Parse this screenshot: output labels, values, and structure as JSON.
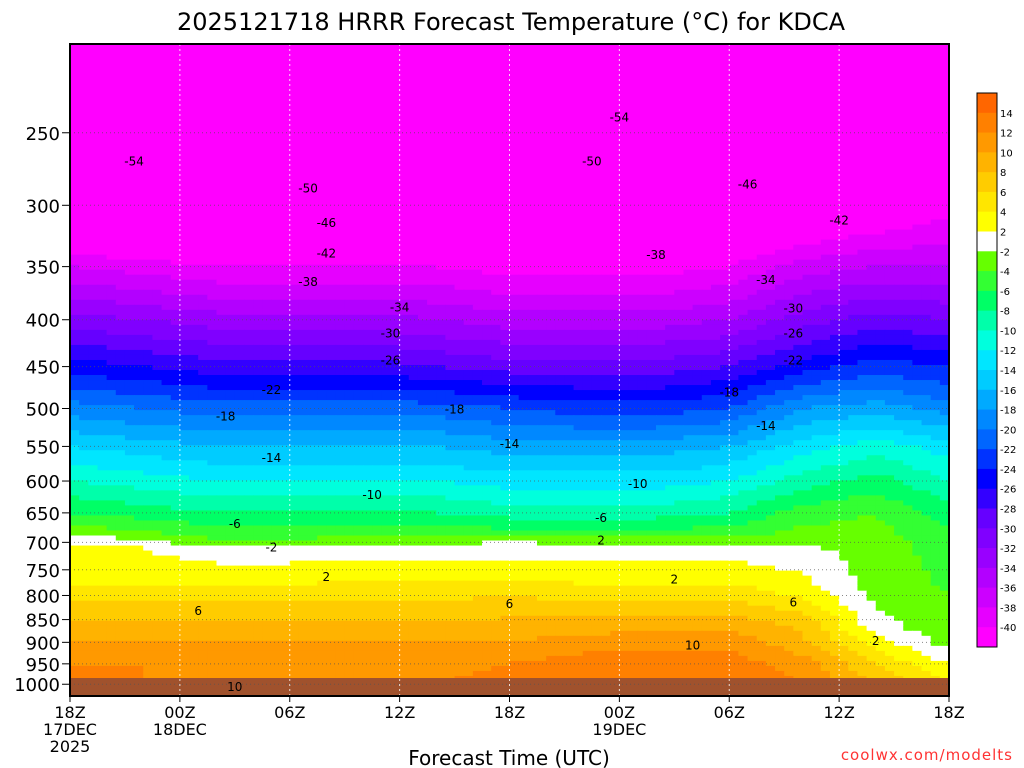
{
  "chart_data": {
    "type": "heatmap",
    "title": "2025121718 HRRR Forecast Temperature (°C) for KDCA",
    "xlabel": "Forecast Time (UTC)",
    "ylabel": "",
    "credit": "coolwx.com/modelts",
    "x_ticks": [
      {
        "hour": 0,
        "lines": [
          "18Z",
          "17DEC",
          "2025"
        ]
      },
      {
        "hour": 6,
        "lines": [
          "00Z",
          "18DEC"
        ]
      },
      {
        "hour": 12,
        "lines": [
          "06Z"
        ]
      },
      {
        "hour": 18,
        "lines": [
          "12Z"
        ]
      },
      {
        "hour": 24,
        "lines": [
          "18Z"
        ]
      },
      {
        "hour": 30,
        "lines": [
          "00Z",
          "19DEC"
        ]
      },
      {
        "hour": 36,
        "lines": [
          "06Z"
        ]
      },
      {
        "hour": 42,
        "lines": [
          "12Z"
        ]
      },
      {
        "hour": 48,
        "lines": [
          "18Z"
        ]
      }
    ],
    "xlim": [
      0,
      48
    ],
    "y_ticks": [
      250,
      300,
      350,
      400,
      450,
      500,
      550,
      600,
      650,
      700,
      750,
      800,
      850,
      900,
      950,
      1000
    ],
    "ylim_hpa": [
      200,
      1030
    ],
    "y_scale": "log",
    "levels": [
      {
        "T": -40,
        "color": "#ff00ff"
      },
      {
        "T": -38,
        "color": "#e600ff"
      },
      {
        "T": -36,
        "color": "#cc00ff"
      },
      {
        "T": -34,
        "color": "#b300ff"
      },
      {
        "T": -32,
        "color": "#9900ff"
      },
      {
        "T": -30,
        "color": "#8000ff"
      },
      {
        "T": -28,
        "color": "#6600ff"
      },
      {
        "T": -26,
        "color": "#3300ff"
      },
      {
        "T": -24,
        "color": "#0000ff"
      },
      {
        "T": -22,
        "color": "#0033ff"
      },
      {
        "T": -20,
        "color": "#0066ff"
      },
      {
        "T": -18,
        "color": "#0088ff"
      },
      {
        "T": -16,
        "color": "#00aaff"
      },
      {
        "T": -14,
        "color": "#00ccff"
      },
      {
        "T": -12,
        "color": "#00e6ff"
      },
      {
        "T": -10,
        "color": "#00ffdd"
      },
      {
        "T": -8,
        "color": "#00ffaa"
      },
      {
        "T": -6,
        "color": "#00ff66"
      },
      {
        "T": -4,
        "color": "#33ff33"
      },
      {
        "T": -2,
        "color": "#66ff00"
      },
      {
        "T": 0,
        "color": "#ffffff"
      },
      {
        "T": 2,
        "color": "#ffff00"
      },
      {
        "T": 4,
        "color": "#ffe600"
      },
      {
        "T": 6,
        "color": "#ffcc00"
      },
      {
        "T": 8,
        "color": "#ffb300"
      },
      {
        "T": 10,
        "color": "#ff9900"
      },
      {
        "T": 12,
        "color": "#ff8000"
      },
      {
        "T": 14,
        "color": "#ff6600"
      }
    ],
    "colorbar_labels": [
      "14",
      "12",
      "10",
      "8",
      "6",
      "4",
      "2",
      "-2",
      "-4",
      "-6",
      "-8",
      "-10",
      "-12",
      "-14",
      "-16",
      "-18",
      "-20",
      "-22",
      "-24",
      "-26",
      "-28",
      "-30",
      "-32",
      "-34",
      "-36",
      "-38",
      "-40"
    ],
    "contour_labels": [
      {
        "v": "-54",
        "h": 3.5,
        "p": 268
      },
      {
        "v": "-54",
        "h": 30.0,
        "p": 240
      },
      {
        "v": "-50",
        "h": 13.0,
        "p": 287
      },
      {
        "v": "-50",
        "h": 28.5,
        "p": 268
      },
      {
        "v": "-46",
        "h": 14.0,
        "p": 313
      },
      {
        "v": "-46",
        "h": 37.0,
        "p": 284
      },
      {
        "v": "-42",
        "h": 14.0,
        "p": 338
      },
      {
        "v": "-42",
        "h": 42.0,
        "p": 311
      },
      {
        "v": "-38",
        "h": 13.0,
        "p": 363
      },
      {
        "v": "-38",
        "h": 32.0,
        "p": 339
      },
      {
        "v": "-34",
        "h": 18.0,
        "p": 387
      },
      {
        "v": "-34",
        "h": 38.0,
        "p": 361
      },
      {
        "v": "-30",
        "h": 17.5,
        "p": 413
      },
      {
        "v": "-30",
        "h": 39.5,
        "p": 388
      },
      {
        "v": "-26",
        "h": 17.5,
        "p": 442
      },
      {
        "v": "-26",
        "h": 39.5,
        "p": 413
      },
      {
        "v": "-22",
        "h": 11.0,
        "p": 476
      },
      {
        "v": "-22",
        "h": 39.5,
        "p": 442
      },
      {
        "v": "-18",
        "h": 8.5,
        "p": 509
      },
      {
        "v": "-18",
        "h": 21.0,
        "p": 500
      },
      {
        "v": "-18",
        "h": 36.0,
        "p": 479
      },
      {
        "v": "-14",
        "h": 11.0,
        "p": 565
      },
      {
        "v": "-14",
        "h": 24.0,
        "p": 545
      },
      {
        "v": "-14",
        "h": 38.0,
        "p": 521
      },
      {
        "v": "-10",
        "h": 16.5,
        "p": 620
      },
      {
        "v": "-10",
        "h": 31.0,
        "p": 603
      },
      {
        "v": "-6",
        "h": 9.0,
        "p": 667
      },
      {
        "v": "-6",
        "h": 29.0,
        "p": 657
      },
      {
        "v": "-2",
        "h": 11.0,
        "p": 707
      },
      {
        "v": "2",
        "h": 29.0,
        "p": 695
      },
      {
        "v": "2",
        "h": 14.0,
        "p": 762
      },
      {
        "v": "2",
        "h": 33.0,
        "p": 767
      },
      {
        "v": "2",
        "h": 44.0,
        "p": 895
      },
      {
        "v": "6",
        "h": 7.0,
        "p": 830
      },
      {
        "v": "6",
        "h": 24.0,
        "p": 815
      },
      {
        "v": "6",
        "h": 39.5,
        "p": 812
      },
      {
        "v": "10",
        "h": 9.0,
        "p": 1005
      },
      {
        "v": "10",
        "h": 34.0,
        "p": 905
      }
    ],
    "profiles": [
      {
        "h": 0,
        "T": [
          [
            200,
            -58
          ],
          [
            250,
            -54
          ],
          [
            300,
            -46
          ],
          [
            350,
            -37
          ],
          [
            400,
            -30
          ],
          [
            450,
            -24
          ],
          [
            500,
            -18
          ],
          [
            550,
            -13
          ],
          [
            600,
            -9
          ],
          [
            650,
            -5
          ],
          [
            680,
            -2
          ],
          [
            700,
            1
          ],
          [
            760,
            2
          ],
          [
            830,
            6
          ],
          [
            900,
            9
          ],
          [
            950,
            11
          ],
          [
            1000,
            12
          ]
        ]
      },
      {
        "h": 4,
        "T": [
          [
            200,
            -59
          ],
          [
            250,
            -55
          ],
          [
            300,
            -47
          ],
          [
            350,
            -38
          ],
          [
            400,
            -31
          ],
          [
            450,
            -25
          ],
          [
            500,
            -19
          ],
          [
            550,
            -14
          ],
          [
            600,
            -10
          ],
          [
            650,
            -6
          ],
          [
            690,
            -2
          ],
          [
            710,
            1
          ],
          [
            760,
            2
          ],
          [
            830,
            6
          ],
          [
            900,
            9
          ],
          [
            950,
            11
          ],
          [
            1000,
            11
          ]
        ]
      },
      {
        "h": 8,
        "T": [
          [
            200,
            -59
          ],
          [
            250,
            -55
          ],
          [
            300,
            -47
          ],
          [
            350,
            -39
          ],
          [
            400,
            -32
          ],
          [
            450,
            -26
          ],
          [
            500,
            -20
          ],
          [
            550,
            -15
          ],
          [
            600,
            -11
          ],
          [
            650,
            -7
          ],
          [
            695,
            -3
          ],
          [
            715,
            0
          ],
          [
            760,
            2
          ],
          [
            830,
            6
          ],
          [
            900,
            9
          ],
          [
            950,
            10
          ],
          [
            1000,
            11
          ]
        ]
      },
      {
        "h": 12,
        "T": [
          [
            200,
            -59
          ],
          [
            250,
            -55
          ],
          [
            300,
            -48
          ],
          [
            350,
            -39
          ],
          [
            400,
            -32
          ],
          [
            450,
            -26
          ],
          [
            500,
            -20
          ],
          [
            550,
            -15
          ],
          [
            600,
            -11
          ],
          [
            650,
            -7
          ],
          [
            695,
            -3
          ],
          [
            715,
            0
          ],
          [
            760,
            2
          ],
          [
            830,
            6
          ],
          [
            900,
            9
          ],
          [
            950,
            10
          ],
          [
            1000,
            11
          ]
        ]
      },
      {
        "h": 16,
        "T": [
          [
            200,
            -59
          ],
          [
            250,
            -55
          ],
          [
            300,
            -48
          ],
          [
            350,
            -39
          ],
          [
            400,
            -32
          ],
          [
            450,
            -26
          ],
          [
            500,
            -20
          ],
          [
            550,
            -15
          ],
          [
            600,
            -11
          ],
          [
            650,
            -7
          ],
          [
            690,
            -3
          ],
          [
            712,
            0
          ],
          [
            755,
            2
          ],
          [
            825,
            6
          ],
          [
            900,
            9
          ],
          [
            950,
            10
          ],
          [
            1000,
            11
          ]
        ]
      },
      {
        "h": 20,
        "T": [
          [
            200,
            -59
          ],
          [
            250,
            -55
          ],
          [
            300,
            -48
          ],
          [
            350,
            -39
          ],
          [
            400,
            -33
          ],
          [
            450,
            -27
          ],
          [
            500,
            -20
          ],
          [
            550,
            -15
          ],
          [
            600,
            -11
          ],
          [
            650,
            -7
          ],
          [
            690,
            -3
          ],
          [
            710,
            0
          ],
          [
            755,
            2
          ],
          [
            825,
            6
          ],
          [
            900,
            9
          ],
          [
            950,
            10
          ],
          [
            1000,
            11
          ]
        ]
      },
      {
        "h": 24,
        "T": [
          [
            200,
            -60
          ],
          [
            250,
            -55
          ],
          [
            300,
            -48
          ],
          [
            350,
            -40
          ],
          [
            400,
            -34
          ],
          [
            450,
            -28
          ],
          [
            500,
            -21
          ],
          [
            550,
            -16
          ],
          [
            600,
            -12
          ],
          [
            650,
            -8
          ],
          [
            685,
            -4
          ],
          [
            705,
            0
          ],
          [
            755,
            2
          ],
          [
            820,
            6
          ],
          [
            900,
            9
          ],
          [
            950,
            11
          ],
          [
            1000,
            12
          ]
        ]
      },
      {
        "h": 28,
        "T": [
          [
            200,
            -60
          ],
          [
            250,
            -55
          ],
          [
            300,
            -48
          ],
          [
            350,
            -40
          ],
          [
            400,
            -34
          ],
          [
            450,
            -28
          ],
          [
            500,
            -22
          ],
          [
            550,
            -16
          ],
          [
            600,
            -12
          ],
          [
            650,
            -8
          ],
          [
            685,
            -4
          ],
          [
            710,
            0
          ],
          [
            760,
            2
          ],
          [
            825,
            6
          ],
          [
            900,
            10
          ],
          [
            950,
            12
          ],
          [
            1000,
            13
          ]
        ]
      },
      {
        "h": 32,
        "T": [
          [
            200,
            -60
          ],
          [
            250,
            -54
          ],
          [
            300,
            -47
          ],
          [
            350,
            -40
          ],
          [
            400,
            -34
          ],
          [
            450,
            -28
          ],
          [
            500,
            -22
          ],
          [
            550,
            -16
          ],
          [
            600,
            -12
          ],
          [
            650,
            -8
          ],
          [
            685,
            -4
          ],
          [
            710,
            0
          ],
          [
            760,
            2
          ],
          [
            825,
            6
          ],
          [
            895,
            10
          ],
          [
            950,
            12
          ],
          [
            1000,
            13
          ]
        ]
      },
      {
        "h": 36,
        "T": [
          [
            200,
            -59
          ],
          [
            250,
            -53
          ],
          [
            300,
            -46
          ],
          [
            350,
            -39
          ],
          [
            400,
            -33
          ],
          [
            450,
            -27
          ],
          [
            500,
            -21
          ],
          [
            550,
            -15
          ],
          [
            600,
            -11
          ],
          [
            650,
            -7
          ],
          [
            685,
            -4
          ],
          [
            708,
            0
          ],
          [
            760,
            2
          ],
          [
            825,
            6
          ],
          [
            890,
            10
          ],
          [
            950,
            12
          ],
          [
            1000,
            13
          ]
        ]
      },
      {
        "h": 40,
        "T": [
          [
            200,
            -58
          ],
          [
            250,
            -52
          ],
          [
            300,
            -44
          ],
          [
            350,
            -36
          ],
          [
            400,
            -30
          ],
          [
            450,
            -24
          ],
          [
            500,
            -17
          ],
          [
            550,
            -12
          ],
          [
            600,
            -8
          ],
          [
            650,
            -4
          ],
          [
            690,
            -2
          ],
          [
            720,
            0
          ],
          [
            790,
            2
          ],
          [
            850,
            6
          ],
          [
            910,
            8
          ],
          [
            950,
            10
          ],
          [
            1000,
            11
          ]
        ]
      },
      {
        "h": 44,
        "T": [
          [
            200,
            -57
          ],
          [
            250,
            -50
          ],
          [
            300,
            -42
          ],
          [
            350,
            -35
          ],
          [
            400,
            -28
          ],
          [
            450,
            -22
          ],
          [
            500,
            -16
          ],
          [
            550,
            -10
          ],
          [
            600,
            -6
          ],
          [
            650,
            -3
          ],
          [
            700,
            -2
          ],
          [
            780,
            -2
          ],
          [
            870,
            0
          ],
          [
            900,
            2
          ],
          [
            950,
            5
          ],
          [
            1000,
            7
          ]
        ]
      },
      {
        "h": 48,
        "T": [
          [
            200,
            -55
          ],
          [
            250,
            -48
          ],
          [
            300,
            -40
          ],
          [
            350,
            -35
          ],
          [
            400,
            -29
          ],
          [
            450,
            -23
          ],
          [
            500,
            -18
          ],
          [
            550,
            -12
          ],
          [
            600,
            -9
          ],
          [
            650,
            -6
          ],
          [
            700,
            -4
          ],
          [
            800,
            -3
          ],
          [
            900,
            -2
          ],
          [
            950,
            1
          ],
          [
            1000,
            3
          ]
        ]
      }
    ]
  }
}
